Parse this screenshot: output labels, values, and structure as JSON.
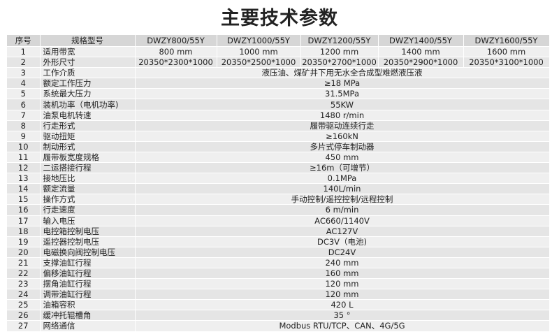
{
  "title": "主要技术参数",
  "table": {
    "headers": [
      "序号",
      "规格型号",
      "DWZY800/55Y",
      "DWZY1000/55Y",
      "DWZY1200/55Y",
      "DWZY1400/55Y",
      "DWZY1600/55Y"
    ],
    "rows": [
      {
        "no": "1",
        "name": "适用带宽",
        "values": [
          "800 mm",
          "1000 mm",
          "1200 mm",
          "1400 mm",
          "1600 mm"
        ]
      },
      {
        "no": "2",
        "name": "外形尺寸",
        "values": [
          "20350*2300*1000",
          "20350*2500*1000",
          "20350*2700*1000",
          "20350*2900*1000",
          "20350*3100*1000"
        ]
      },
      {
        "no": "3",
        "name": "工作介质",
        "values": [
          "液压油、煤矿井下用无水全合成型难燃液压液"
        ]
      },
      {
        "no": "4",
        "name": "额定工作压力",
        "values": [
          "≥18 MPa"
        ]
      },
      {
        "no": "5",
        "name": "系统最大压力",
        "values": [
          "31.5MPa"
        ]
      },
      {
        "no": "6",
        "name": "装机功率（电机功率)",
        "values": [
          "55KW"
        ]
      },
      {
        "no": "7",
        "name": "油泵电机转速",
        "values": [
          "1480 r/min"
        ]
      },
      {
        "no": "8",
        "name": "行走形式",
        "values": [
          "履带驱动连续行走"
        ]
      },
      {
        "no": "9",
        "name": "驱动扭矩",
        "values": [
          "≥160kN"
        ]
      },
      {
        "no": "10",
        "name": "制动形式",
        "values": [
          "多片式停车制动器"
        ]
      },
      {
        "no": "11",
        "name": "履带板宽度规格",
        "values": [
          "450 mm"
        ]
      },
      {
        "no": "12",
        "name": "二运搭接行程",
        "values": [
          "≥16m（可增节）"
        ]
      },
      {
        "no": "13",
        "name": "接地压比",
        "values": [
          "0.1MPa"
        ]
      },
      {
        "no": "14",
        "name": "额定流量",
        "values": [
          "140L/min"
        ]
      },
      {
        "no": "15",
        "name": "操作方式",
        "values": [
          "手动控制/遥控控制/远程控制"
        ]
      },
      {
        "no": "16",
        "name": "行走速度",
        "values": [
          "6 m/min"
        ]
      },
      {
        "no": "17",
        "name": "输入电压",
        "values": [
          "AC660/1140V"
        ]
      },
      {
        "no": "18",
        "name": "电控箱控制电压",
        "values": [
          "AC127V"
        ]
      },
      {
        "no": "19",
        "name": "遥控器控制电压",
        "values": [
          "DC3V（电池)"
        ]
      },
      {
        "no": "20",
        "name": "电磁换向阀控制电压",
        "values": [
          "DC24V"
        ]
      },
      {
        "no": "21",
        "name": "支撑油缸行程",
        "values": [
          "240 mm"
        ]
      },
      {
        "no": "22",
        "name": "偏移油缸行程",
        "values": [
          "160 mm"
        ]
      },
      {
        "no": "23",
        "name": "摆角油缸行程",
        "values": [
          "120 mm"
        ]
      },
      {
        "no": "24",
        "name": "调带油缸行程",
        "values": [
          "120 mm"
        ]
      },
      {
        "no": "25",
        "name": "油箱容积",
        "values": [
          "420 L"
        ]
      },
      {
        "no": "26",
        "name": "缓冲托辊槽角",
        "values": [
          "35 °"
        ]
      },
      {
        "no": "27",
        "name": "网络通信",
        "values": [
          "Modbus RTU/TCP、CAN、4G/5G"
        ]
      }
    ]
  }
}
